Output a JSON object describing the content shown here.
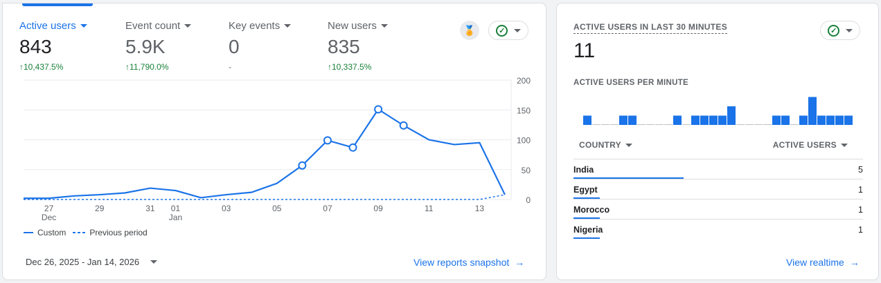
{
  "metrics": [
    {
      "label": "Active users",
      "value": "843",
      "delta": "10,437.5%"
    },
    {
      "label": "Event count",
      "value": "5.9K",
      "delta": "11,790.0%"
    },
    {
      "label": "Key events",
      "value": "0",
      "delta": "-"
    },
    {
      "label": "New users",
      "value": "835",
      "delta": "10,337.5%"
    }
  ],
  "chart_data": {
    "type": "line",
    "x": [
      "Dec 26",
      "Dec 27",
      "Dec 28",
      "Dec 29",
      "Dec 30",
      "Dec 31",
      "Jan 01",
      "Jan 02",
      "Jan 03",
      "Jan 04",
      "Jan 05",
      "Jan 06",
      "Jan 07",
      "Jan 08",
      "Jan 09",
      "Jan 10",
      "Jan 11",
      "Jan 12",
      "Jan 13",
      "Jan 14"
    ],
    "series": [
      {
        "name": "Custom",
        "style": "solid",
        "values": [
          2,
          2,
          6,
          8,
          11,
          19,
          15,
          3,
          8,
          12,
          27,
          57,
          99,
          87,
          151,
          124,
          100,
          92,
          95,
          8
        ],
        "markers": [
          11,
          12,
          13,
          14,
          15
        ]
      },
      {
        "name": "Previous period",
        "style": "dashed",
        "values": [
          0,
          0,
          0,
          0,
          0,
          0,
          0,
          0,
          0,
          0,
          0,
          0,
          0,
          0,
          0,
          0,
          0,
          0,
          0,
          8
        ]
      }
    ],
    "x_tick_labels": [
      {
        "i": 1,
        "label": "27",
        "sub": "Dec"
      },
      {
        "i": 3,
        "label": "29"
      },
      {
        "i": 5,
        "label": "31"
      },
      {
        "i": 6,
        "label": "01",
        "sub": "Jan"
      },
      {
        "i": 8,
        "label": "03"
      },
      {
        "i": 10,
        "label": "05"
      },
      {
        "i": 12,
        "label": "07"
      },
      {
        "i": 14,
        "label": "09"
      },
      {
        "i": 16,
        "label": "11"
      },
      {
        "i": 18,
        "label": "13"
      }
    ],
    "y_ticks": [
      0,
      50,
      100,
      150,
      200
    ],
    "ylim": [
      0,
      200
    ],
    "grid": true,
    "legend": "bottom-left",
    "color": "#1a73e8"
  },
  "date_range": "Dec 26, 2025 - Jan 14, 2026",
  "view_snapshot": "View reports snapshot",
  "realtime": {
    "title": "ACTIVE USERS IN LAST 30 MINUTES",
    "value": "11",
    "per_minute_label": "ACTIVE USERS PER MINUTE",
    "per_minute": [
      1,
      0,
      0,
      0,
      1,
      1,
      0,
      0,
      0,
      0,
      1,
      0,
      1,
      1,
      1,
      1,
      2,
      0,
      0,
      0,
      0,
      1,
      1,
      0,
      1,
      3,
      1,
      1,
      1,
      1
    ],
    "col_country": "COUNTRY",
    "col_users": "ACTIVE USERS",
    "rows": [
      {
        "country": "India",
        "users": "5",
        "share": 0.38
      },
      {
        "country": "Egypt",
        "users": "1",
        "share": 0.09
      },
      {
        "country": "Morocco",
        "users": "1",
        "share": 0.09
      },
      {
        "country": "Nigeria",
        "users": "1",
        "share": 0.09
      }
    ],
    "view_realtime": "View realtime"
  }
}
